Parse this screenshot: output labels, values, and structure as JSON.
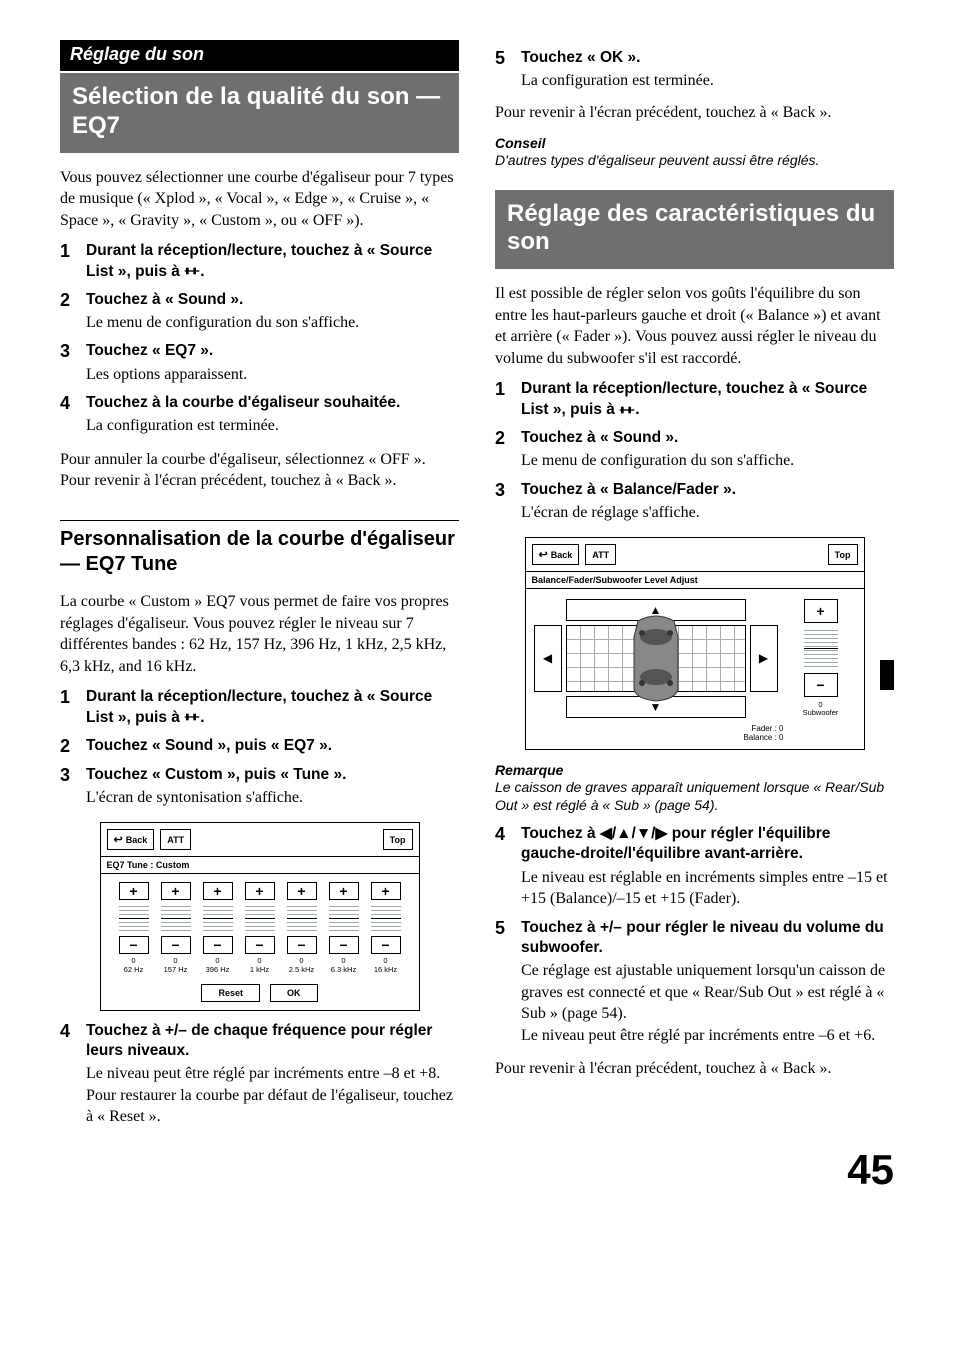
{
  "left": {
    "section_label": "Réglage du son",
    "title": "Sélection de la qualité du son — EQ7",
    "intro": "Vous pouvez sélectionner une courbe d'égaliseur pour 7 types de musique (« Xplod », « Vocal », « Edge », « Cruise », « Space », « Gravity », « Custom », ou « OFF »).",
    "steps1": [
      {
        "n": "1",
        "t": "Durant la réception/lecture, touchez à « Source List », puis à ",
        "icon": true,
        "suffix": "."
      },
      {
        "n": "2",
        "t": "Touchez à « Sound ».",
        "b": "Le menu de configuration du son s'affiche."
      },
      {
        "n": "3",
        "t": "Touchez « EQ7 ».",
        "b": "Les options apparaissent."
      },
      {
        "n": "4",
        "t": "Touchez à la courbe d'égaliseur souhaitée.",
        "b": "La configuration est terminée."
      }
    ],
    "after1_a": "Pour annuler la courbe d'égaliseur, sélectionnez « OFF ».",
    "after1_b": "Pour revenir à l'écran précédent, touchez à « Back ».",
    "sub_heading": "Personnalisation de la courbe d'égaliseur — EQ7 Tune",
    "sub_intro": "La courbe « Custom » EQ7 vous permet de faire vos propres réglages d'égaliseur. Vous pouvez régler le niveau sur 7 différentes bandes : 62 Hz, 157 Hz, 396 Hz, 1 kHz, 2,5 kHz, 6,3 kHz, and 16 kHz.",
    "steps2": [
      {
        "n": "1",
        "t": "Durant la réception/lecture, touchez à « Source List », puis à ",
        "icon": true,
        "suffix": "."
      },
      {
        "n": "2",
        "t": "Touchez « Sound », puis « EQ7 »."
      },
      {
        "n": "3",
        "t": "Touchez « Custom », puis « Tune ».",
        "b": "L'écran de syntonisation s'affiche."
      }
    ],
    "eq_panel": {
      "back": "Back",
      "att": "ATT",
      "top": "Top",
      "subtitle": "EQ7 Tune : Custom",
      "bands": [
        {
          "v": "0",
          "f": "62 Hz"
        },
        {
          "v": "0",
          "f": "157 Hz"
        },
        {
          "v": "0",
          "f": "396 Hz"
        },
        {
          "v": "0",
          "f": "1 kHz"
        },
        {
          "v": "0",
          "f": "2.5 kHz"
        },
        {
          "v": "0",
          "f": "6.3 kHz"
        },
        {
          "v": "0",
          "f": "16 kHz"
        }
      ],
      "reset": "Reset",
      "ok": "OK"
    },
    "steps3": [
      {
        "n": "4",
        "t": "Touchez à +/– de chaque fréquence pour régler leurs niveaux.",
        "b": "Le niveau peut être réglé par incréments entre –8 et +8.\nPour restaurer la courbe par défaut de l'égaliseur, touchez à « Reset »."
      }
    ]
  },
  "right": {
    "steps_top": [
      {
        "n": "5",
        "t": "Touchez « OK ».",
        "b": "La configuration est terminée."
      }
    ],
    "after_top": "Pour revenir à l'écran précédent, touchez à « Back ».",
    "tip_label": "Conseil",
    "tip_body": "D'autres types d'égaliseur peuvent aussi être réglés.",
    "title": "Réglage des caractéristiques du son",
    "intro": "Il est possible de régler selon vos goûts l'équilibre du son entre les haut-parleurs gauche et droit (« Balance ») et avant et arrière (« Fader »). Vous pouvez aussi régler le niveau du volume du subwoofer s'il est raccordé.",
    "steps1": [
      {
        "n": "1",
        "t": "Durant la réception/lecture, touchez à « Source List », puis à ",
        "icon": true,
        "suffix": "."
      },
      {
        "n": "2",
        "t": "Touchez à « Sound ».",
        "b": "Le menu de configuration du son s'affiche."
      },
      {
        "n": "3",
        "t": "Touchez à « Balance/Fader ».",
        "b": "L'écran de réglage s'affiche."
      }
    ],
    "bf_panel": {
      "back": "Back",
      "att": "ATT",
      "top": "Top",
      "subtitle": "Balance/Fader/Subwoofer Level Adjust",
      "fader": "Fader : 0",
      "balance": "Balance : 0",
      "sub_v": "0",
      "sub_l": "Subwoofer"
    },
    "note_label": "Remarque",
    "note_body": "Le caisson de graves apparaît uniquement lorsque « Rear/Sub Out » est réglé à « Sub » (page 54).",
    "steps2": [
      {
        "n": "4",
        "t_pre": "Touchez à ",
        "t_post": " pour régler l'équilibre gauche-droite/l'équilibre avant-arrière.",
        "arrows": true,
        "b": "Le niveau est réglable en incréments simples entre –15 et +15 (Balance)/–15 et +15 (Fader)."
      },
      {
        "n": "5",
        "t": "Touchez à +/– pour régler le niveau du volume du subwoofer.",
        "b": "Ce réglage est ajustable uniquement lorsqu'un caisson de graves est connecté et que « Rear/Sub Out » est réglé à « Sub » (page 54).\nLe niveau peut être réglé par incréments entre –6 et +6."
      }
    ],
    "after2": "Pour revenir à l'écran précédent, touchez à « Back »."
  },
  "page_number": "45"
}
